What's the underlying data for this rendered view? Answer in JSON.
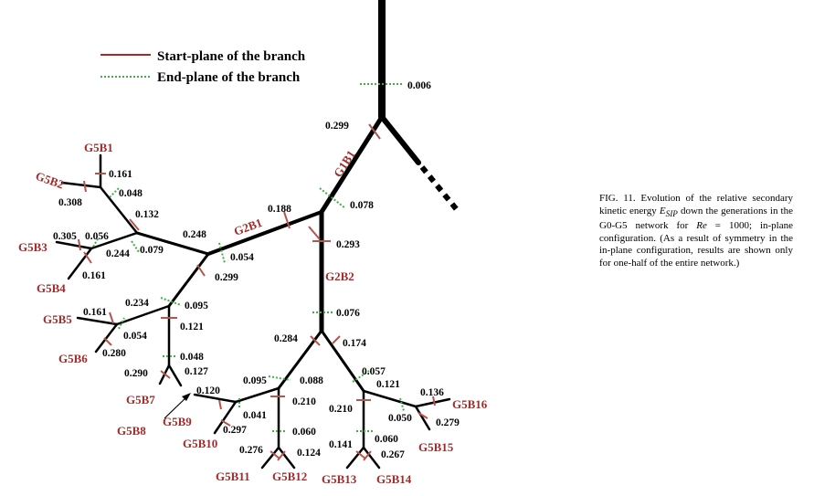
{
  "legend": [
    "Start-plane of the branch",
    "End-plane of the branch"
  ],
  "branch_labels": [
    "G1B1",
    "G2B1",
    "G2B2",
    "G5B1",
    "G5B2",
    "G5B3",
    "G5B4",
    "G5B5",
    "G5B6",
    "G5B7",
    "G5B8",
    "G5B9",
    "G5B10",
    "G5B11",
    "G5B12",
    "G5B13",
    "G5B14",
    "G5B15",
    "G5B16"
  ],
  "values": [
    "0.006",
    "0.299",
    "0.078",
    "0.188",
    "0.293",
    "0.054",
    "0.248",
    "0.299",
    "0.132",
    "0.161",
    "0.048",
    "0.308",
    "0.305",
    "0.056",
    "0.244",
    "0.079",
    "0.161",
    "0.234",
    "0.095",
    "0.161",
    "0.121",
    "0.054",
    "0.280",
    "0.048",
    "0.290",
    "0.127",
    "0.076",
    "0.284",
    "0.174",
    "0.120",
    "0.095",
    "0.088",
    "0.041",
    "0.210",
    "0.297",
    "0.060",
    "0.276",
    "0.124",
    "0.057",
    "0.121",
    "0.210",
    "0.136",
    "0.050",
    "0.279",
    "0.141",
    "0.060",
    "0.267"
  ],
  "caption": {
    "before": "FIG. 11. Evolution of the relative secondary kinetic energy ",
    "symbol": "E",
    "subscript": "SIP",
    "middle": " down the generations in the G0-G5 network for ",
    "re": "Re",
    "after": " = 1000; in-plane configuration. (As a result of symmetry in the in-plane configuration, results are shown only for one-half of the entire network.)"
  }
}
